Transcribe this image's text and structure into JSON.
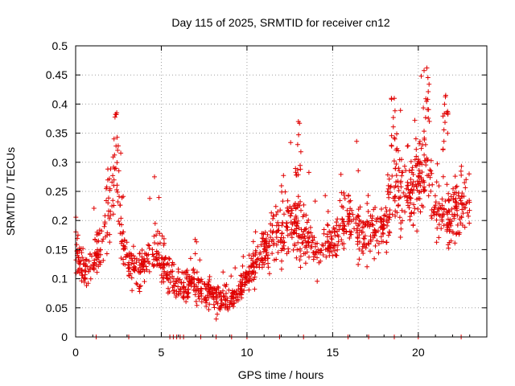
{
  "chart_data": {
    "type": "scatter",
    "title": "Day 115 of 2025, SRMTID for receiver cn12",
    "xlabel": "GPS time / hours",
    "ylabel": "SRMTID / TECUs",
    "xlim": [
      0,
      24
    ],
    "ylim": [
      0,
      0.5
    ],
    "grid": true,
    "marker": "+",
    "series_color": "#e00000",
    "x_ticks": [
      0,
      5,
      10,
      15,
      20
    ],
    "x_tick_labels": [
      "0",
      "5",
      "10",
      "15",
      "20"
    ],
    "y_ticks": [
      0,
      0.05,
      0.1,
      0.15,
      0.2,
      0.25,
      0.3,
      0.35,
      0.4,
      0.45,
      0.5
    ],
    "y_tick_labels": [
      "0",
      "0.05",
      "0.1",
      "0.15",
      "0.2",
      "0.25",
      "0.3",
      "0.35",
      "0.4",
      "0.45",
      "0.5"
    ],
    "profile": [
      {
        "x": 0.0,
        "y": 0.16,
        "spread": 0.05
      },
      {
        "x": 0.5,
        "y": 0.11,
        "spread": 0.04
      },
      {
        "x": 1.0,
        "y": 0.13,
        "spread": 0.04
      },
      {
        "x": 1.5,
        "y": 0.16,
        "spread": 0.04
      },
      {
        "x": 2.0,
        "y": 0.22,
        "spread": 0.08
      },
      {
        "x": 2.3,
        "y": 0.3,
        "spread": 0.06
      },
      {
        "x": 2.7,
        "y": 0.16,
        "spread": 0.05
      },
      {
        "x": 3.2,
        "y": 0.12,
        "spread": 0.04
      },
      {
        "x": 4.0,
        "y": 0.12,
        "spread": 0.04
      },
      {
        "x": 4.6,
        "y": 0.16,
        "spread": 0.05
      },
      {
        "x": 5.0,
        "y": 0.13,
        "spread": 0.04
      },
      {
        "x": 6.0,
        "y": 0.09,
        "spread": 0.03
      },
      {
        "x": 7.0,
        "y": 0.09,
        "spread": 0.03
      },
      {
        "x": 8.0,
        "y": 0.07,
        "spread": 0.03
      },
      {
        "x": 9.0,
        "y": 0.06,
        "spread": 0.02
      },
      {
        "x": 10.0,
        "y": 0.1,
        "spread": 0.03
      },
      {
        "x": 11.0,
        "y": 0.15,
        "spread": 0.04
      },
      {
        "x": 12.0,
        "y": 0.18,
        "spread": 0.06
      },
      {
        "x": 13.0,
        "y": 0.2,
        "spread": 0.07
      },
      {
        "x": 14.0,
        "y": 0.15,
        "spread": 0.04
      },
      {
        "x": 15.0,
        "y": 0.17,
        "spread": 0.04
      },
      {
        "x": 16.0,
        "y": 0.2,
        "spread": 0.05
      },
      {
        "x": 17.0,
        "y": 0.17,
        "spread": 0.05
      },
      {
        "x": 18.0,
        "y": 0.2,
        "spread": 0.05
      },
      {
        "x": 18.7,
        "y": 0.26,
        "spread": 0.08
      },
      {
        "x": 19.5,
        "y": 0.24,
        "spread": 0.06
      },
      {
        "x": 20.5,
        "y": 0.3,
        "spread": 0.08
      },
      {
        "x": 21.0,
        "y": 0.22,
        "spread": 0.06
      },
      {
        "x": 21.8,
        "y": 0.2,
        "spread": 0.06
      },
      {
        "x": 22.5,
        "y": 0.23,
        "spread": 0.06
      },
      {
        "x": 22.9,
        "y": 0.22,
        "spread": 0.05
      }
    ],
    "peaks": [
      {
        "x": 2.4,
        "y": 0.385
      },
      {
        "x": 13.0,
        "y": 0.37
      },
      {
        "x": 18.6,
        "y": 0.41
      },
      {
        "x": 20.5,
        "y": 0.462
      },
      {
        "x": 21.6,
        "y": 0.415
      }
    ],
    "zero_points_x": [
      1.2,
      3.1,
      5.5,
      5.7,
      5.9,
      6.1,
      6.3,
      7.3,
      8.2,
      9.1,
      10.0,
      11.9,
      13.3,
      15.9,
      17.1,
      18.6,
      20.0,
      22.5
    ]
  }
}
